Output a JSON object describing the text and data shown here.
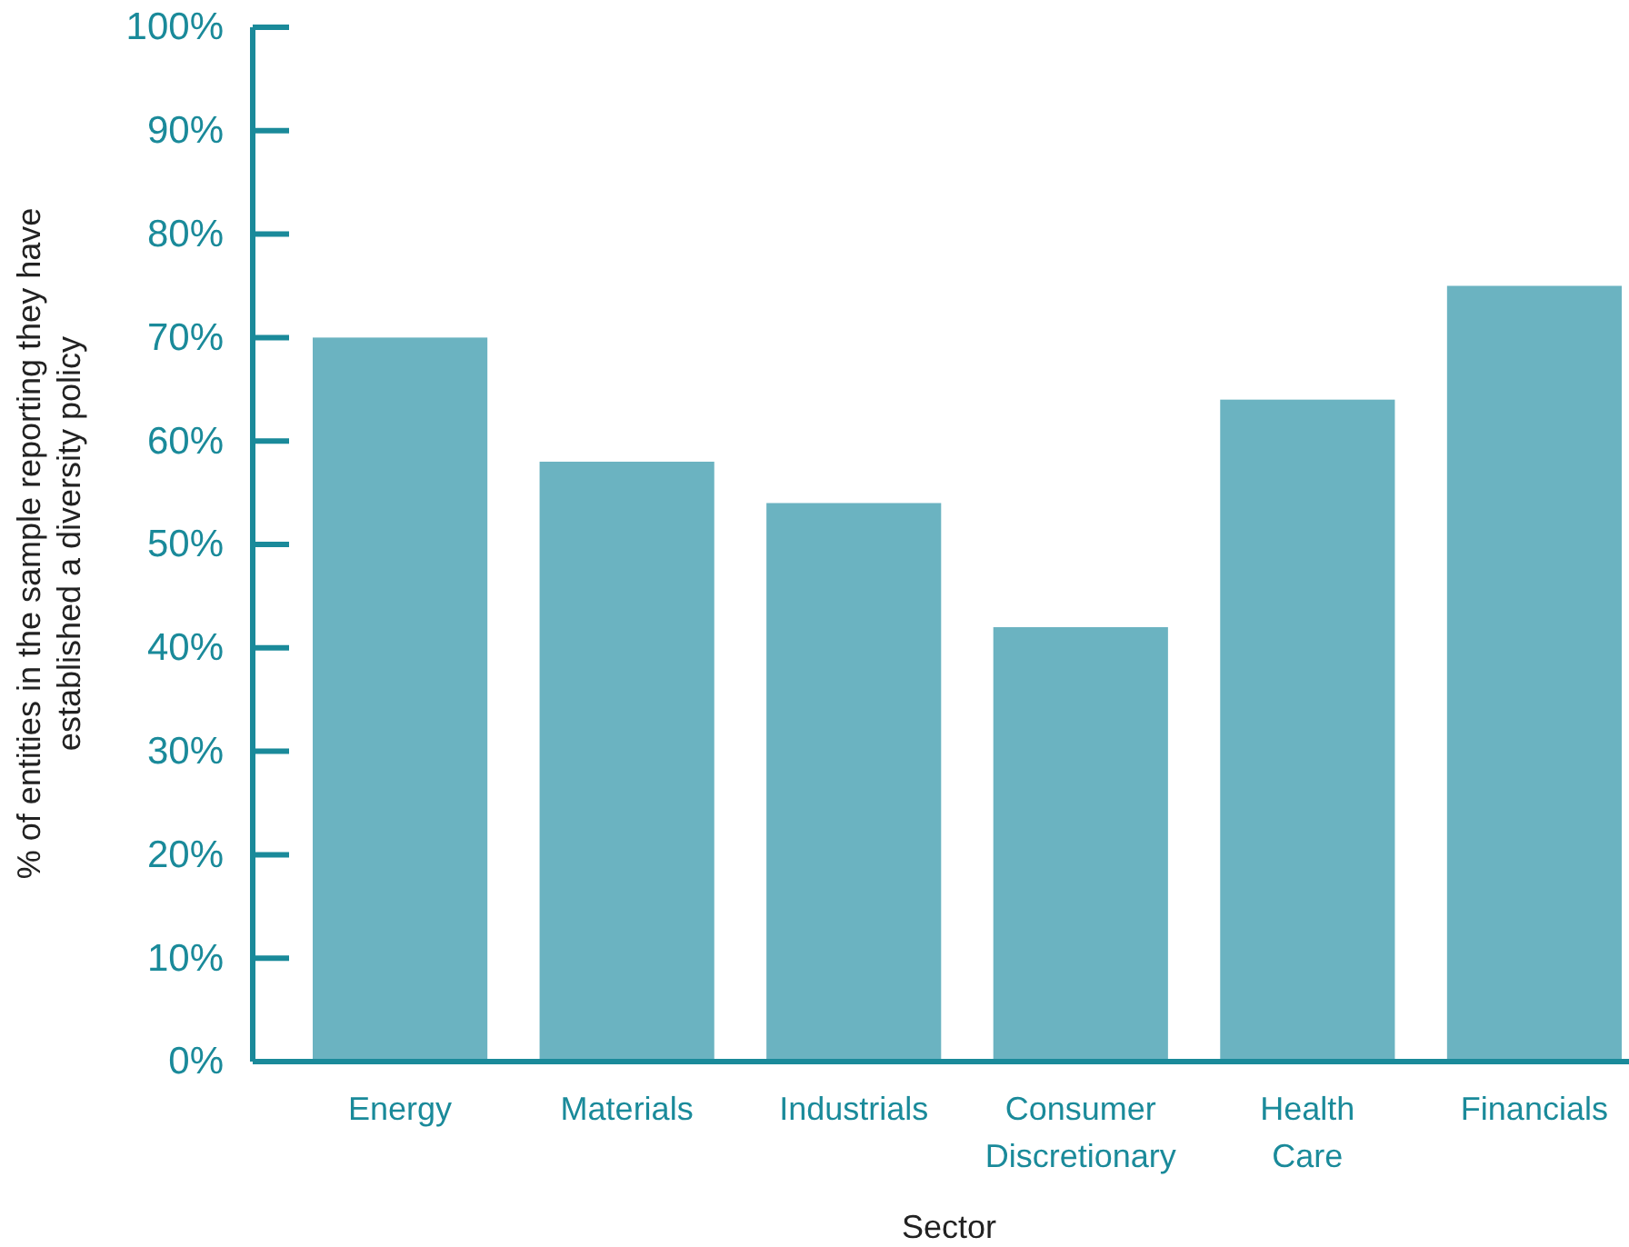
{
  "chart_data": {
    "type": "bar",
    "xlabel": "Sector",
    "ylabel": "% of entities in the sample reporting they have established a diversity policy",
    "categories": [
      "Energy",
      "Materials",
      "Industrials",
      "Consumer Discretionary",
      "Health Care",
      "Financials"
    ],
    "values": [
      70,
      58,
      54,
      42,
      64,
      75
    ],
    "color": "#6bb3c1",
    "ylim": [
      0,
      100
    ],
    "yticks": [
      {
        "value": 0,
        "label": "0%"
      },
      {
        "value": 10,
        "label": "10%"
      },
      {
        "value": 20,
        "label": "20%"
      },
      {
        "value": 30,
        "label": "30%"
      },
      {
        "value": 40,
        "label": "40%"
      },
      {
        "value": 50,
        "label": "50%"
      },
      {
        "value": 60,
        "label": "60%"
      },
      {
        "value": 70,
        "label": "70%"
      },
      {
        "value": 80,
        "label": "80%"
      },
      {
        "value": 90,
        "label": "90%"
      },
      {
        "value": 100,
        "label": "100%"
      }
    ],
    "grid": false
  }
}
